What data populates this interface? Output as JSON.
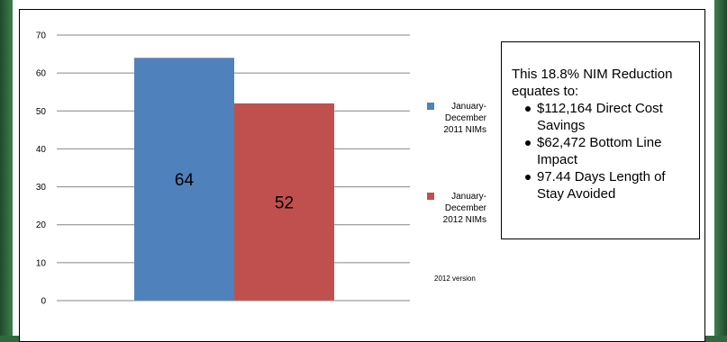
{
  "chart_data": {
    "type": "bar",
    "title": "",
    "xlabel": "",
    "ylabel": "",
    "ylim": [
      0,
      70
    ],
    "yticks": [
      0,
      10,
      20,
      30,
      40,
      50,
      60,
      70
    ],
    "grid": true,
    "legend_position": "right",
    "series": [
      {
        "name": "January-December 2011 NIMs",
        "value": 64,
        "color": "#4f81bd"
      },
      {
        "name": "January-December 2012 NIMs",
        "value": 52,
        "color": "#c0504d"
      }
    ]
  },
  "legend": {
    "items": [
      {
        "lines": [
          "January-",
          "December",
          "2011 NIMs"
        ],
        "color": "#4f81bd"
      },
      {
        "lines": [
          "January-",
          "December",
          "2012 NIMs"
        ],
        "color": "#c0504d"
      }
    ]
  },
  "version_label": "2012 version",
  "summary": {
    "intro": "This 18.8% NIM Reduction equates to:",
    "bullets": [
      "$112,164 Direct Cost Savings",
      "$62,472 Bottom Line Impact",
      "97.44 Days Length of Stay Avoided"
    ]
  }
}
